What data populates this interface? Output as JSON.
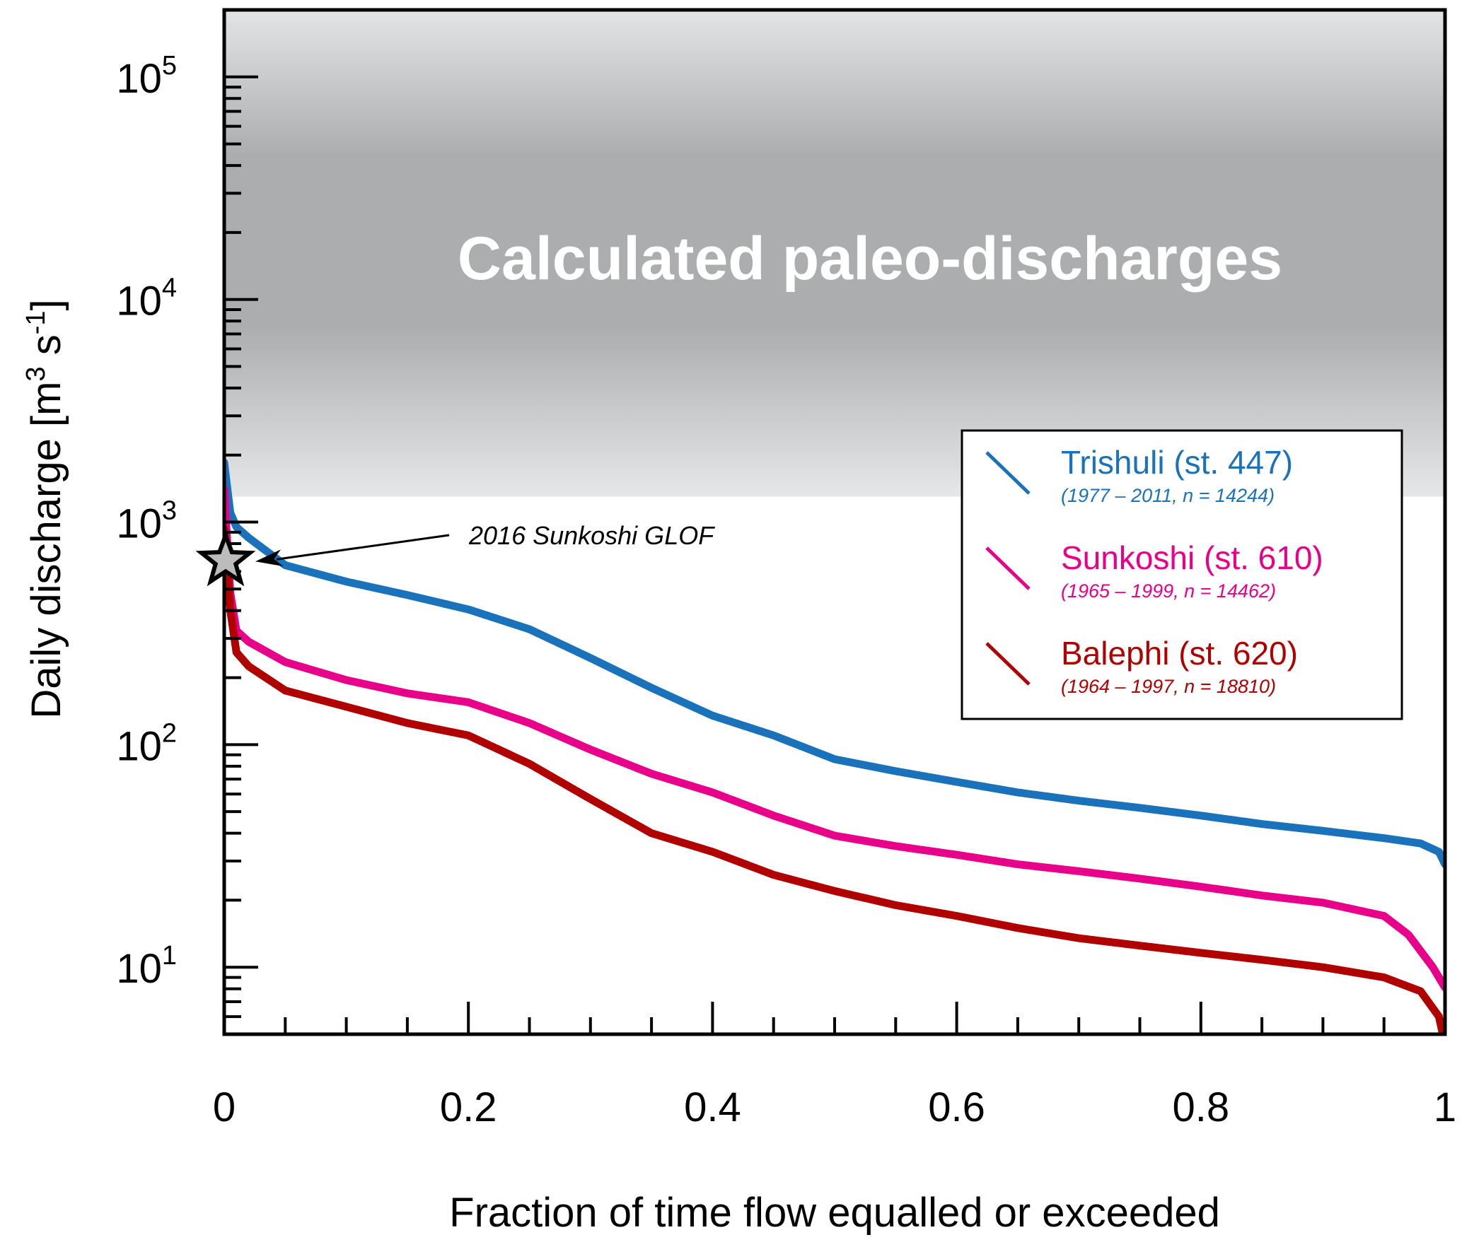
{
  "chart_data": {
    "type": "scatter",
    "title": "",
    "xlabel": "Fraction of time flow equalled or exceeded",
    "ylabel": "Daily discharge [m³ s⁻¹]",
    "ylabel_parts": {
      "main": "Daily discharge [m",
      "sup1": "3",
      "mid": " s",
      "sup2": "-1",
      "end": "]"
    },
    "xlim": [
      0,
      1
    ],
    "ylim": [
      5,
      200000
    ],
    "yscale": "log",
    "grid": false,
    "x_ticks": [
      {
        "value": 0,
        "label": "0"
      },
      {
        "value": 0.2,
        "label": "0.2"
      },
      {
        "value": 0.4,
        "label": "0.4"
      },
      {
        "value": 0.6,
        "label": "0.6"
      },
      {
        "value": 0.8,
        "label": "0.8"
      },
      {
        "value": 1,
        "label": "1"
      }
    ],
    "y_ticks": [
      {
        "value": 10,
        "base": "10",
        "exp": "1"
      },
      {
        "value": 100,
        "base": "10",
        "exp": "2"
      },
      {
        "value": 1000,
        "base": "10",
        "exp": "3"
      },
      {
        "value": 10000,
        "base": "10",
        "exp": "4"
      },
      {
        "value": 100000,
        "base": "10",
        "exp": "5"
      }
    ],
    "shaded_region": {
      "label": "Calculated paleo-discharges",
      "y_from": 1300,
      "y_to": 200000
    },
    "annotation": {
      "label": "2016 Sunkoshi GLOF",
      "x": 0,
      "y": 670,
      "marker": "star-icon"
    },
    "legend_position": "right",
    "series": [
      {
        "name": "Trishuli (st. 447)",
        "detail": "(1977 – 2011, n = 14244)",
        "color": "#1a72bb",
        "points": [
          [
            0,
            1850
          ],
          [
            0.002,
            1500
          ],
          [
            0.005,
            1100
          ],
          [
            0.01,
            950
          ],
          [
            0.02,
            850
          ],
          [
            0.05,
            640
          ],
          [
            0.1,
            540
          ],
          [
            0.15,
            470
          ],
          [
            0.2,
            405
          ],
          [
            0.25,
            330
          ],
          [
            0.3,
            245
          ],
          [
            0.35,
            180
          ],
          [
            0.4,
            135
          ],
          [
            0.45,
            110
          ],
          [
            0.5,
            86
          ],
          [
            0.55,
            76
          ],
          [
            0.6,
            68
          ],
          [
            0.65,
            61
          ],
          [
            0.7,
            56
          ],
          [
            0.75,
            52
          ],
          [
            0.8,
            48
          ],
          [
            0.85,
            44
          ],
          [
            0.9,
            41
          ],
          [
            0.95,
            38
          ],
          [
            0.98,
            36
          ],
          [
            0.995,
            33
          ],
          [
            1,
            29
          ]
        ]
      },
      {
        "name": "Sunkoshi (st. 610)",
        "detail": "(1965 – 1999, n = 14462)",
        "color": "#e8008a",
        "points": [
          [
            0,
            1400
          ],
          [
            0.002,
            900
          ],
          [
            0.005,
            480
          ],
          [
            0.01,
            325
          ],
          [
            0.02,
            290
          ],
          [
            0.05,
            235
          ],
          [
            0.1,
            195
          ],
          [
            0.15,
            170
          ],
          [
            0.2,
            155
          ],
          [
            0.25,
            125
          ],
          [
            0.3,
            95
          ],
          [
            0.35,
            74
          ],
          [
            0.4,
            61
          ],
          [
            0.45,
            48
          ],
          [
            0.5,
            39
          ],
          [
            0.55,
            35
          ],
          [
            0.6,
            32
          ],
          [
            0.65,
            29
          ],
          [
            0.7,
            27
          ],
          [
            0.75,
            25
          ],
          [
            0.8,
            23
          ],
          [
            0.85,
            21
          ],
          [
            0.9,
            19.5
          ],
          [
            0.95,
            17
          ],
          [
            0.97,
            14
          ],
          [
            0.99,
            10
          ],
          [
            1,
            8.1
          ]
        ]
      },
      {
        "name": "Balephi (st. 620)",
        "detail": "(1964 – 1997, n = 18810)",
        "color": "#b00000",
        "points": [
          [
            0,
            930
          ],
          [
            0.002,
            700
          ],
          [
            0.005,
            400
          ],
          [
            0.01,
            260
          ],
          [
            0.02,
            225
          ],
          [
            0.05,
            175
          ],
          [
            0.1,
            148
          ],
          [
            0.15,
            125
          ],
          [
            0.2,
            110
          ],
          [
            0.25,
            82
          ],
          [
            0.3,
            57
          ],
          [
            0.35,
            40
          ],
          [
            0.4,
            33
          ],
          [
            0.45,
            26
          ],
          [
            0.5,
            22
          ],
          [
            0.55,
            19
          ],
          [
            0.6,
            17
          ],
          [
            0.65,
            15
          ],
          [
            0.7,
            13.5
          ],
          [
            0.75,
            12.5
          ],
          [
            0.8,
            11.6
          ],
          [
            0.85,
            10.8
          ],
          [
            0.9,
            10
          ],
          [
            0.95,
            9
          ],
          [
            0.98,
            7.8
          ],
          [
            0.995,
            6
          ],
          [
            1,
            4.5
          ]
        ]
      }
    ]
  }
}
